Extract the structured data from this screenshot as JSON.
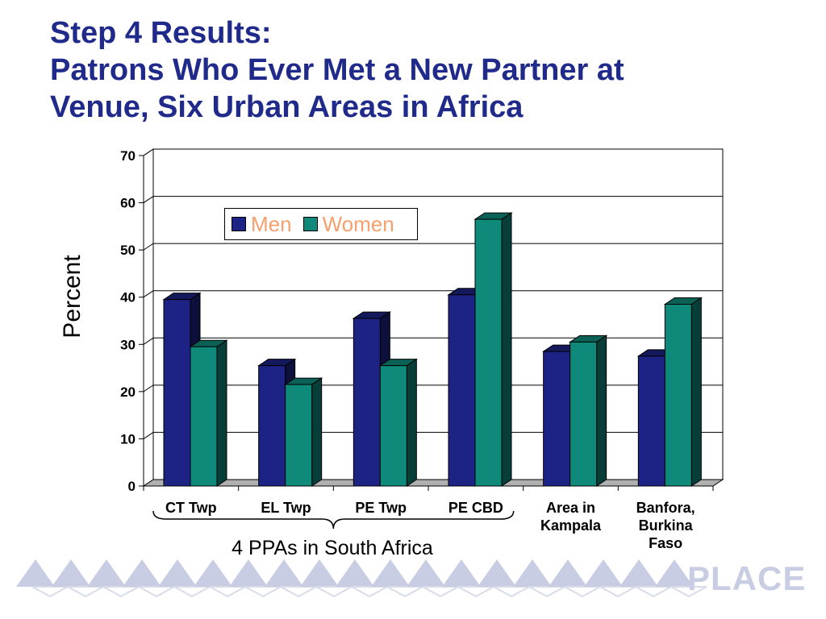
{
  "title": {
    "line1": "Step 4 Results:",
    "line2": "Patrons Who Ever Met a New Partner at",
    "line3": "Venue, Six Urban Areas in Africa"
  },
  "colors": {
    "men": "#1c2384",
    "women": "#0f8a7a",
    "title": "#1f2a8a",
    "legend_text": "#f5a06e"
  },
  "brace_note": "4 PPAs in South Africa",
  "logo_text": "PLACE",
  "chart_data": {
    "type": "bar",
    "categories": [
      "CT Twp",
      "EL Twp",
      "PE Twp",
      "PE CBD",
      "Area in Kampala",
      "Banfora, Burkina Faso"
    ],
    "category_lines": [
      [
        "CT Twp"
      ],
      [
        "EL Twp"
      ],
      [
        "PE Twp"
      ],
      [
        "PE CBD"
      ],
      [
        "Area in",
        "Kampala"
      ],
      [
        "Banfora,",
        "Burkina",
        "Faso"
      ]
    ],
    "series": [
      {
        "name": "Men",
        "values": [
          39.5,
          25.5,
          35.5,
          40.5,
          28.5,
          27.5
        ]
      },
      {
        "name": "Women",
        "values": [
          29.5,
          21.5,
          25.5,
          56.5,
          30.5,
          38.5
        ]
      }
    ],
    "ylabel": "Percent",
    "ylim": [
      0,
      70
    ],
    "yticks": [
      "0",
      "10",
      "20",
      "30",
      "40",
      "50",
      "60",
      "70"
    ],
    "grid": true,
    "legend": "top-left"
  }
}
